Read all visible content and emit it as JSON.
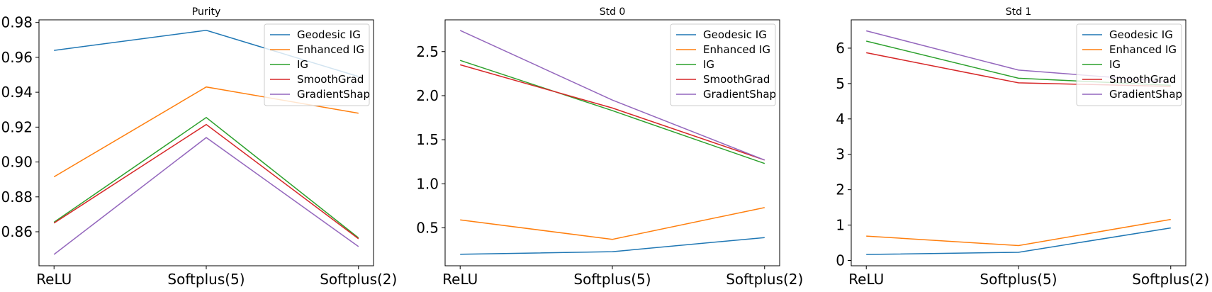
{
  "chart_data": [
    {
      "type": "line",
      "title": "Purity",
      "categories": [
        "ReLU",
        "Softplus(5)",
        "Softplus(2)"
      ],
      "ylim": [
        0.8405,
        0.9815
      ],
      "yticks": [
        0.86,
        0.88,
        0.9,
        0.92,
        0.94,
        0.96,
        0.98
      ],
      "ytick_labels": [
        "0.86",
        "0.88",
        "0.90",
        "0.92",
        "0.94",
        "0.96",
        "0.98"
      ],
      "legend_position": "top-right",
      "grid": false,
      "series": [
        {
          "name": "Geodesic IG",
          "color": "#1f77b4",
          "values": [
            0.964,
            0.9755,
            0.949
          ]
        },
        {
          "name": "Enhanced IG",
          "color": "#ff7f0e",
          "values": [
            0.8915,
            0.943,
            0.928
          ]
        },
        {
          "name": "IG",
          "color": "#2ca02c",
          "values": [
            0.8655,
            0.9255,
            0.8565
          ]
        },
        {
          "name": "SmoothGrad",
          "color": "#d62728",
          "values": [
            0.865,
            0.9215,
            0.856
          ]
        },
        {
          "name": "GradientShap",
          "color": "#9467bd",
          "values": [
            0.847,
            0.914,
            0.8515
          ]
        }
      ]
    },
    {
      "type": "line",
      "title": "Std 0",
      "categories": [
        "ReLU",
        "Softplus(5)",
        "Softplus(2)"
      ],
      "ylim": [
        0.07,
        2.86
      ],
      "yticks": [
        0.5,
        1.0,
        1.5,
        2.0,
        2.5
      ],
      "ytick_labels": [
        "0.5",
        "1.0",
        "1.5",
        "2.0",
        "2.5"
      ],
      "legend_position": "top-right",
      "grid": false,
      "series": [
        {
          "name": "Geodesic IG",
          "color": "#1f77b4",
          "values": [
            0.2,
            0.23,
            0.39
          ]
        },
        {
          "name": "Enhanced IG",
          "color": "#ff7f0e",
          "values": [
            0.59,
            0.37,
            0.73
          ]
        },
        {
          "name": "IG",
          "color": "#2ca02c",
          "values": [
            2.4,
            1.83,
            1.23
          ]
        },
        {
          "name": "SmoothGrad",
          "color": "#d62728",
          "values": [
            2.35,
            1.86,
            1.27
          ]
        },
        {
          "name": "GradientShap",
          "color": "#9467bd",
          "values": [
            2.74,
            1.95,
            1.27
          ]
        }
      ]
    },
    {
      "type": "line",
      "title": "Std 1",
      "categories": [
        "ReLU",
        "Softplus(5)",
        "Softplus(2)"
      ],
      "ylim": [
        -0.15,
        6.8
      ],
      "yticks": [
        0,
        1,
        2,
        3,
        4,
        5,
        6
      ],
      "ytick_labels": [
        "0",
        "1",
        "2",
        "3",
        "4",
        "5",
        "6"
      ],
      "legend_position": "top-right",
      "grid": false,
      "series": [
        {
          "name": "Geodesic IG",
          "color": "#1f77b4",
          "values": [
            0.17,
            0.23,
            0.92
          ]
        },
        {
          "name": "Enhanced IG",
          "color": "#ff7f0e",
          "values": [
            0.69,
            0.42,
            1.16
          ]
        },
        {
          "name": "IG",
          "color": "#2ca02c",
          "values": [
            6.2,
            5.15,
            4.95
          ]
        },
        {
          "name": "SmoothGrad",
          "color": "#d62728",
          "values": [
            5.87,
            5.02,
            4.92
          ]
        },
        {
          "name": "GradientShap",
          "color": "#9467bd",
          "values": [
            6.49,
            5.38,
            5.05
          ]
        }
      ]
    }
  ]
}
